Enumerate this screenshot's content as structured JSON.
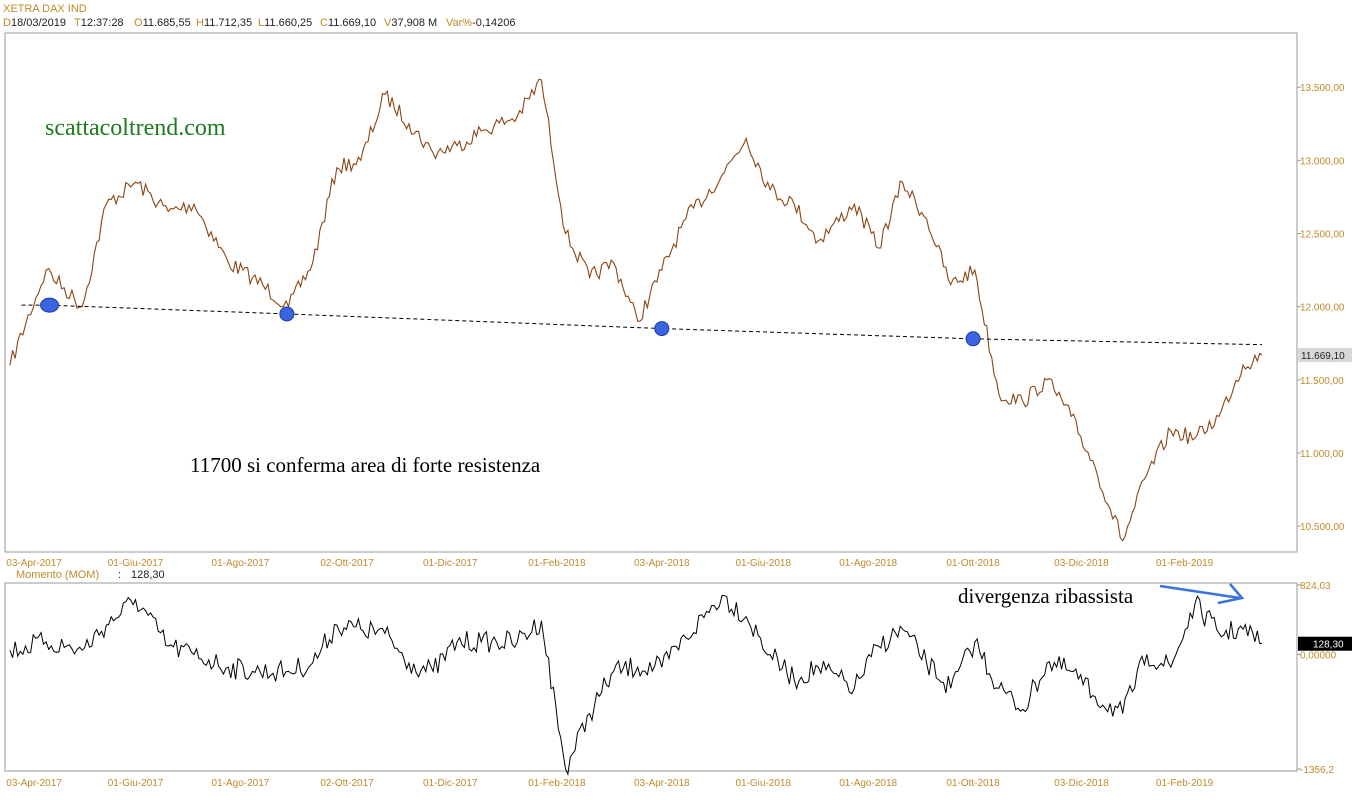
{
  "header": {
    "title": "XETRA DAX IND",
    "fields": [
      {
        "key": "D",
        "value": "18/03/2019"
      },
      {
        "key": "T",
        "value": "12:37:28"
      },
      {
        "key": "O",
        "value": "11.685,55"
      },
      {
        "key": "H",
        "value": "11.712,35"
      },
      {
        "key": "L",
        "value": "11.660,25"
      },
      {
        "key": "C",
        "value": "11.669,10"
      },
      {
        "key": "V",
        "value": "37,908 M"
      },
      {
        "key": "Var%",
        "value": "-0,14206"
      }
    ]
  },
  "annotations": {
    "brand": "scattacoltrend.com",
    "resistance_note": "11700 si conferma area di forte resistenza",
    "divergence_note": "divergenza ribassista"
  },
  "colors": {
    "price_line": "#8b4513",
    "momentum_line": "#000000",
    "axis_text": "#c08a2a",
    "pivot_marker": "#3a64e0",
    "divergence_arrow": "#3a72e0",
    "brand_text": "#1f7a1f"
  },
  "chart_data": [
    {
      "type": "line",
      "name": "price",
      "series_name": "XETRA DAX IND",
      "ylim": [
        10350,
        13850
      ],
      "yticks": [
        "13.500,00",
        "13.000,00",
        "12.500,00",
        "12.000,00",
        "11.500,00",
        "11.000,00",
        "10.500,00"
      ],
      "ytick_values": [
        13500,
        13000,
        12500,
        12000,
        11500,
        11000,
        10500
      ],
      "last_value_label": "11.669,10",
      "last_value": 11669.1,
      "xticks": [
        "03-Apr-2017",
        "01-Giu-2017",
        "01-Ago-2017",
        "02-Ott-2017",
        "01-Dic-2017",
        "01-Feb-2018",
        "03-Apr-2018",
        "01-Giu-2018",
        "01-Ago-2018",
        "01-Ott-2018",
        "03-Dic-2018",
        "01-Feb-2019"
      ],
      "x": [
        "2017-03-20",
        "2017-04-10",
        "2017-05-01",
        "2017-05-15",
        "2017-06-01",
        "2017-06-20",
        "2017-07-05",
        "2017-07-25",
        "2017-08-08",
        "2017-08-29",
        "2017-09-12",
        "2017-09-26",
        "2017-10-10",
        "2017-10-24",
        "2017-11-07",
        "2017-11-21",
        "2017-12-05",
        "2017-12-19",
        "2018-01-09",
        "2018-01-23",
        "2018-02-06",
        "2018-02-20",
        "2018-03-06",
        "2018-03-20",
        "2018-04-03",
        "2018-04-17",
        "2018-05-08",
        "2018-05-22",
        "2018-06-05",
        "2018-06-19",
        "2018-07-03",
        "2018-07-24",
        "2018-08-07",
        "2018-08-21",
        "2018-09-04",
        "2018-09-18",
        "2018-10-02",
        "2018-10-16",
        "2018-10-30",
        "2018-11-13",
        "2018-11-27",
        "2018-12-11",
        "2018-12-27",
        "2019-01-10",
        "2019-01-24",
        "2019-02-07",
        "2019-02-21",
        "2019-03-07",
        "2019-03-18"
      ],
      "y": [
        11600,
        12250,
        12000,
        12700,
        12850,
        12650,
        12700,
        12300,
        12200,
        12000,
        12300,
        12950,
        13000,
        13450,
        13250,
        13050,
        13100,
        13200,
        13300,
        13550,
        12500,
        12200,
        12300,
        11900,
        12250,
        12600,
        12900,
        13150,
        12800,
        12700,
        12450,
        12700,
        12400,
        12850,
        12600,
        12150,
        12250,
        11400,
        11350,
        11500,
        11250,
        10900,
        10400,
        10850,
        11150,
        11100,
        11250,
        11600,
        11669.1
      ]
    },
    {
      "type": "line",
      "name": "momentum",
      "series_name": "Momento (MOM)",
      "current_value_label": "128,30",
      "current_value": 128.3,
      "ylim": [
        -1356.2,
        824.03
      ],
      "yticks": [
        "824,03",
        "0,00000",
        "-1356,2"
      ],
      "ytick_values": [
        824.03,
        0,
        -1356.2
      ],
      "xticks": [
        "03-Apr-2017",
        "01-Giu-2017",
        "01-Ago-2017",
        "02-Ott-2017",
        "01-Dic-2017",
        "01-Feb-2018",
        "03-Apr-2018",
        "01-Giu-2018",
        "01-Ago-2018",
        "01-Ott-2018",
        "03-Dic-2018",
        "01-Feb-2019"
      ],
      "x": [
        "2017-03-20",
        "2017-04-10",
        "2017-05-01",
        "2017-05-15",
        "2017-06-01",
        "2017-06-20",
        "2017-07-05",
        "2017-07-25",
        "2017-08-08",
        "2017-08-29",
        "2017-09-12",
        "2017-09-26",
        "2017-10-10",
        "2017-10-24",
        "2017-11-07",
        "2017-11-21",
        "2017-12-05",
        "2017-12-19",
        "2018-01-09",
        "2018-01-23",
        "2018-02-06",
        "2018-02-20",
        "2018-03-06",
        "2018-03-20",
        "2018-04-03",
        "2018-04-17",
        "2018-05-08",
        "2018-05-22",
        "2018-06-05",
        "2018-06-19",
        "2018-07-03",
        "2018-07-24",
        "2018-08-07",
        "2018-08-21",
        "2018-09-04",
        "2018-09-18",
        "2018-10-02",
        "2018-10-16",
        "2018-10-30",
        "2018-11-13",
        "2018-11-27",
        "2018-12-11",
        "2018-12-27",
        "2019-01-10",
        "2019-01-24",
        "2019-02-07",
        "2019-02-21",
        "2019-03-07",
        "2019-03-18"
      ],
      "y": [
        50,
        150,
        50,
        350,
        650,
        100,
        0,
        -150,
        -200,
        -200,
        -100,
        350,
        300,
        250,
        -100,
        -200,
        150,
        150,
        150,
        400,
        -1356,
        -700,
        -200,
        -150,
        -150,
        200,
        700,
        450,
        0,
        -300,
        -150,
        -400,
        100,
        300,
        -100,
        -400,
        150,
        -400,
        -650,
        -100,
        -200,
        -500,
        -700,
        0,
        -150,
        600,
        250,
        300,
        128.3
      ]
    },
    {
      "type": "line",
      "name": "support_trendline",
      "points": [
        {
          "x": "2017-04-12",
          "y": 12010
        },
        {
          "x": "2017-08-28",
          "y": 11950
        },
        {
          "x": "2018-04-03",
          "y": 11850
        },
        {
          "x": "2018-10-01",
          "y": 11780
        },
        {
          "x": "2019-03-18",
          "y": 11740
        }
      ],
      "touches": [
        {
          "x": "2017-04-12",
          "y": 12010
        },
        {
          "x": "2017-08-28",
          "y": 11950
        },
        {
          "x": "2018-04-03",
          "y": 11850
        },
        {
          "x": "2018-10-01",
          "y": 11780
        }
      ]
    }
  ]
}
